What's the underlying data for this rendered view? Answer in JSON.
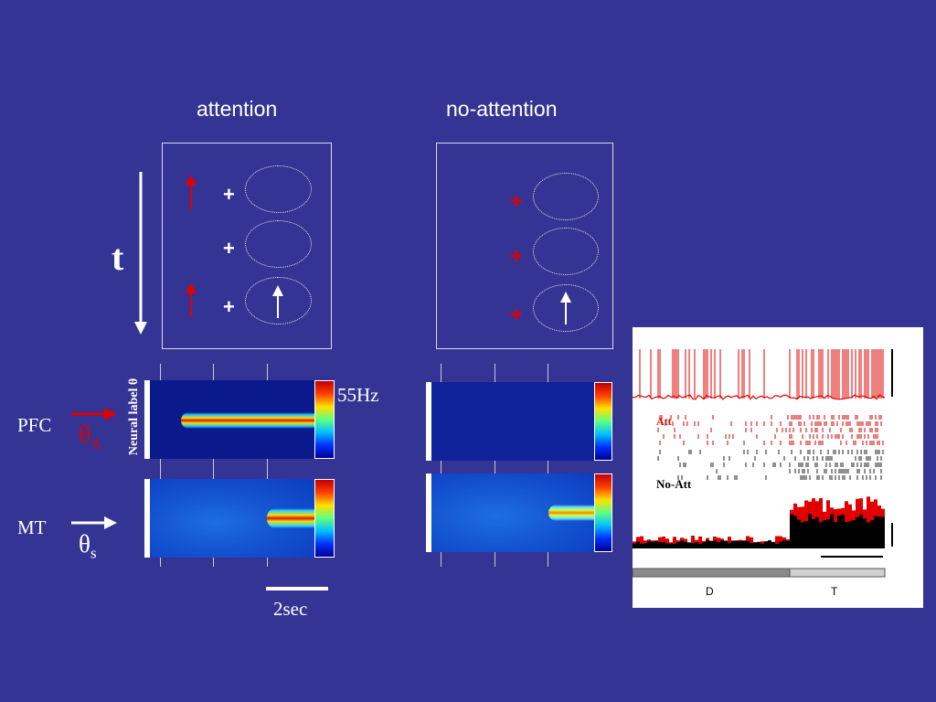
{
  "headers": {
    "attention": "attention",
    "no_attention": "no-attention"
  },
  "time_axis": {
    "label": "t"
  },
  "y_label": "Neural label θ",
  "rows": {
    "pfc": {
      "label": "PFC",
      "theta": "θ",
      "sub": "A"
    },
    "mt": {
      "label": "MT",
      "theta": "θ",
      "sub": "s"
    }
  },
  "colorbar_max": "55Hz",
  "scale_bar": "2sec",
  "inset": {
    "att": "Att",
    "no_att": "No-Att",
    "period_d": "D",
    "period_t": "T"
  },
  "colors": {
    "background": "#343494",
    "attended": "#e00000",
    "panel_bg": "#0a1a8c"
  }
}
